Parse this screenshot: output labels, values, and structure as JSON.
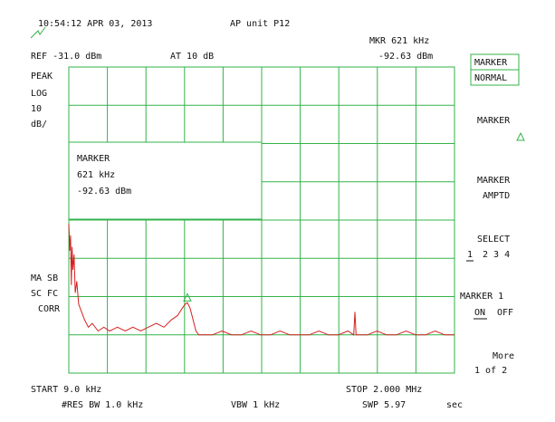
{
  "header": {
    "timestamp": "10:54:12 APR 03, 2013",
    "title": "AP unit P12",
    "marker_readout": "MKR 621 kHz",
    "ref_level": "REF -31.0 dBm",
    "attenuation": "AT 10  dB",
    "marker_amplitude": "-92.63 dBm"
  },
  "left_labels": [
    "PEAK",
    "LOG",
    "10",
    "dB/",
    "MA SB",
    "SC FC",
    "CORR"
  ],
  "marker_box": {
    "title": "MARKER",
    "frequency": "621 kHz",
    "amplitude": "-92.63 dBm"
  },
  "softkeys": {
    "marker_normal": [
      "MARKER",
      "NORMAL"
    ],
    "marker": "MARKER",
    "marker_amptd": [
      "MARKER",
      "AMPTD"
    ],
    "select": "SELECT",
    "select_active": "1",
    "select_others": "2 3 4",
    "marker_1": "MARKER 1",
    "on": "ON",
    "off": "OFF",
    "more": "More",
    "page": "1 of 2"
  },
  "footer": {
    "start": "START 9.0  kHz",
    "stop": "STOP 2.000  MHz",
    "rbw": "#RES BW 1.0  kHz",
    "vbw": "VBW 1 kHz",
    "sweep": "SWP 5.97",
    "sweep_unit": "sec"
  },
  "trace": {
    "xlim": [
      9,
      2000
    ],
    "ylim": [
      -111,
      -31
    ],
    "color": "#d42020",
    "khz": [
      9,
      14,
      18,
      22,
      26,
      30,
      36,
      42,
      50,
      60,
      75,
      90,
      110,
      130,
      160,
      190,
      220,
      260,
      300,
      340,
      380,
      420,
      460,
      500,
      540,
      570,
      595,
      610,
      621,
      635,
      650,
      665,
      680,
      700,
      750,
      800,
      850,
      900,
      950,
      1000,
      1050,
      1100,
      1150,
      1200,
      1250,
      1300,
      1350,
      1400,
      1450,
      1480,
      1486,
      1492,
      1550,
      1600,
      1650,
      1700,
      1750,
      1800,
      1850,
      1900,
      1950,
      2000
    ],
    "dbm": [
      -72,
      -79,
      -75,
      -88,
      -78,
      -84,
      -80,
      -90,
      -87,
      -93,
      -95,
      -97,
      -99,
      -98,
      -100,
      -99,
      -100,
      -99,
      -100,
      -99,
      -100,
      -99,
      -98,
      -99,
      -97,
      -96,
      -94,
      -93,
      -92.6,
      -94,
      -97,
      -100,
      -101,
      -101,
      -101,
      -100,
      -101,
      -101,
      -100,
      -101,
      -101,
      -100,
      -101,
      -101,
      -101,
      -100,
      -101,
      -101,
      -100,
      -101,
      -95,
      -101,
      -101,
      -100,
      -101,
      -101,
      -100,
      -101,
      -101,
      -100,
      -101,
      -101
    ]
  },
  "marker": {
    "khz": 621,
    "dbm": -92.63
  }
}
